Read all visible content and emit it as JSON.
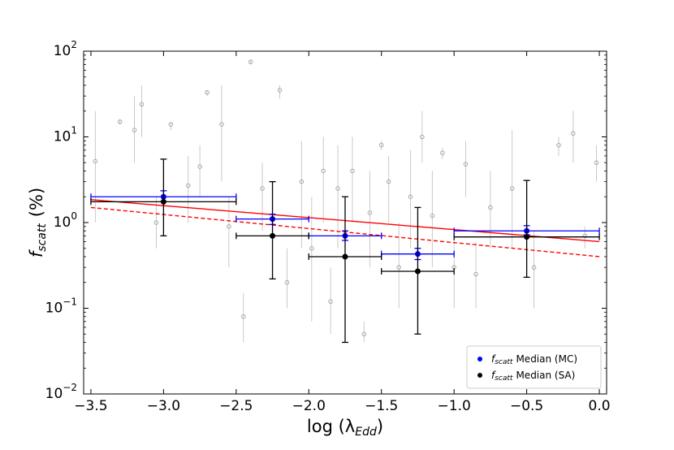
{
  "chart_data": {
    "type": "scatter",
    "symbol": {
      "base": "f",
      "sub": "scatt"
    },
    "ylabel": {
      "unit": "(%)"
    },
    "xlabel": {
      "text": "log (λ",
      "sub": "Edd",
      "close": ")"
    },
    "xlim": [
      -3.55,
      0.05
    ],
    "ylim": [
      0.01,
      100
    ],
    "log_y": true,
    "xticks": [
      {
        "value": -3.5,
        "label": "−3.5"
      },
      {
        "value": -3.0,
        "label": "−3.0"
      },
      {
        "value": -2.5,
        "label": "−2.5"
      },
      {
        "value": -2.0,
        "label": "−2.0"
      },
      {
        "value": -1.5,
        "label": "−1.5"
      },
      {
        "value": -1.0,
        "label": "−1.0"
      },
      {
        "value": -0.5,
        "label": "−0.5"
      },
      {
        "value": 0.0,
        "label": "0.0"
      }
    ],
    "yticks": [
      {
        "value": 0.01,
        "label": "10",
        "exponent": "−2"
      },
      {
        "value": 0.1,
        "label": "10",
        "exponent": "−1"
      },
      {
        "value": 1,
        "label": "10",
        "exponent": "0"
      },
      {
        "value": 10,
        "label": "10",
        "exponent": "1"
      },
      {
        "value": 100,
        "label": "10",
        "exponent": "2"
      }
    ],
    "points": {
      "color": "#a0a0a0",
      "x": [
        -3.47,
        -3.3,
        -3.2,
        -3.15,
        -3.05,
        -2.95,
        -2.83,
        -2.75,
        -2.7,
        -2.6,
        -2.55,
        -2.45,
        -2.4,
        -2.32,
        -2.2,
        -2.15,
        -2.05,
        -1.98,
        -1.9,
        -1.85,
        -1.8,
        -1.7,
        -1.62,
        -1.58,
        -1.5,
        -1.45,
        -1.38,
        -1.3,
        -1.22,
        -1.15,
        -1.08,
        -1.0,
        -0.92,
        -0.85,
        -0.75,
        -0.6,
        -0.45,
        -0.28,
        -0.18,
        -0.02,
        -0.1
      ],
      "values": [
        5.2,
        15,
        12,
        24,
        1,
        14,
        2.7,
        4.5,
        33,
        14,
        0.9,
        0.08,
        75,
        2.5,
        35,
        0.2,
        3,
        0.5,
        4,
        0.12,
        2.5,
        4,
        0.05,
        1.3,
        8,
        3,
        0.3,
        2,
        10,
        1.2,
        6.5,
        0.3,
        4.8,
        0.25,
        1.5,
        2.5,
        0.3,
        8,
        11,
        5,
        0.7
      ],
      "ylow": [
        1,
        14,
        5,
        10,
        0.5,
        12,
        1,
        2,
        30,
        3,
        0.3,
        0.04,
        70,
        0.8,
        28,
        0.1,
        0.5,
        0.07,
        1,
        0.05,
        0.5,
        1,
        0.04,
        0.3,
        7,
        1,
        0.1,
        0.5,
        5,
        0.3,
        5.5,
        0.1,
        2,
        0.1,
        0.5,
        0.5,
        0.1,
        6,
        5,
        3,
        0.5
      ],
      "yhigh": [
        20,
        16,
        30,
        40,
        2,
        15,
        6,
        8,
        35,
        40,
        2,
        0.15,
        80,
        5,
        40,
        0.5,
        9,
        2,
        10,
        0.3,
        8,
        10,
        0.07,
        4,
        9,
        6,
        1,
        7,
        20,
        4,
        7.5,
        0.8,
        9,
        0.6,
        4,
        12,
        0.8,
        10,
        20,
        8,
        0.9
      ]
    },
    "series": [
      {
        "name": "Median (MC)",
        "color": "#0000ff",
        "x": [
          -3.0,
          -2.25,
          -1.75,
          -1.25,
          -0.5
        ],
        "xerr": [
          0.5,
          0.25,
          0.25,
          0.25,
          0.5
        ],
        "values": [
          2.0,
          1.1,
          0.7,
          0.43,
          0.8
        ],
        "ylow": [
          1.75,
          0.95,
          0.62,
          0.37,
          0.72
        ],
        "yhigh": [
          2.35,
          1.25,
          0.8,
          0.5,
          0.92
        ]
      },
      {
        "name": "Median (SA)",
        "color": "#000000",
        "x": [
          -3.0,
          -2.25,
          -1.75,
          -1.25,
          -0.5
        ],
        "xerr": [
          0.5,
          0.25,
          0.25,
          0.25,
          0.5
        ],
        "values": [
          1.75,
          0.7,
          0.4,
          0.27,
          0.68
        ],
        "ylow": [
          0.7,
          0.22,
          0.04,
          0.05,
          0.23
        ],
        "yhigh": [
          5.5,
          3.0,
          2.0,
          1.5,
          3.1
        ]
      }
    ],
    "fits": [
      {
        "color": "#ff0000",
        "dashed": false,
        "x": [
          -3.5,
          0.0
        ],
        "values": [
          1.85,
          0.6
        ]
      },
      {
        "color": "#ff0000",
        "dashed": true,
        "x": [
          -3.5,
          0.0
        ],
        "values": [
          1.5,
          0.4
        ]
      }
    ],
    "legend": "lower right"
  }
}
